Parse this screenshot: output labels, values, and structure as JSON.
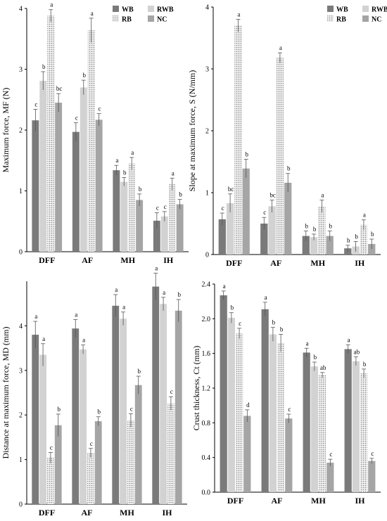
{
  "colors": {
    "WB": "#7a7a7a",
    "RWB": "#d2d2d2",
    "RB": "#c6c6c6",
    "NC": "#a5a5a5",
    "axis": "#000000",
    "error": "#555555"
  },
  "legend_names": [
    "WB",
    "RWB",
    "RB",
    "NC"
  ],
  "chart_data": [
    {
      "type": "bar",
      "categories": [
        "DFF",
        "AF",
        "MH",
        "IH"
      ],
      "ylabel": "Maximum force, MF (N)",
      "ylim": [
        0,
        4
      ],
      "yticks": [
        "0",
        "1",
        "2",
        "3",
        "4"
      ],
      "legend": "top-right",
      "series": [
        {
          "name": "WB",
          "values": [
            2.16,
            1.97,
            1.34,
            0.51
          ],
          "errors": [
            0.18,
            0.15,
            0.08,
            0.13
          ],
          "labels": [
            "c",
            "c",
            "a",
            "c"
          ]
        },
        {
          "name": "RWB",
          "values": [
            2.81,
            2.7,
            1.15,
            0.58
          ],
          "errors": [
            0.15,
            0.12,
            0.07,
            0.08
          ],
          "labels": [
            "b",
            "b",
            "b",
            "c"
          ]
        },
        {
          "name": "RB",
          "values": [
            3.88,
            3.64,
            1.45,
            1.11
          ],
          "errors": [
            0.1,
            0.2,
            0.1,
            0.1
          ],
          "labels": [
            "a",
            "a",
            "a",
            "a"
          ]
        },
        {
          "name": "NC",
          "values": [
            2.45,
            2.17,
            0.85,
            0.78
          ],
          "errors": [
            0.15,
            0.1,
            0.1,
            0.08
          ],
          "labels": [
            "bc",
            "c",
            "b",
            "b"
          ]
        }
      ]
    },
    {
      "type": "bar",
      "categories": [
        "DFF",
        "AF",
        "MH",
        "IH"
      ],
      "ylabel": "Slope at maximum force, S (N/mm)",
      "ylim": [
        0,
        4
      ],
      "yticks": [
        "0",
        "1",
        "2",
        "3",
        "4"
      ],
      "legend": "top-right",
      "series": [
        {
          "name": "WB",
          "values": [
            0.57,
            0.5,
            0.3,
            0.1
          ],
          "errors": [
            0.1,
            0.1,
            0.08,
            0.05
          ],
          "labels": [
            "c",
            "c",
            "b",
            "b"
          ]
        },
        {
          "name": "RWB",
          "values": [
            0.83,
            0.78,
            0.28,
            0.13
          ],
          "errors": [
            0.15,
            0.1,
            0.05,
            0.08
          ],
          "labels": [
            "bc",
            "bc",
            "b",
            "b"
          ]
        },
        {
          "name": "RB",
          "values": [
            3.7,
            3.18,
            0.78,
            0.48
          ],
          "errors": [
            0.1,
            0.08,
            0.1,
            0.08
          ],
          "labels": [
            "a",
            "a",
            "a",
            "a"
          ]
        },
        {
          "name": "NC",
          "values": [
            1.39,
            1.16,
            0.3,
            0.17
          ],
          "errors": [
            0.15,
            0.15,
            0.08,
            0.08
          ],
          "labels": [
            "b",
            "b",
            "b",
            "b"
          ]
        }
      ]
    },
    {
      "type": "bar",
      "categories": [
        "DFF",
        "AF",
        "MH",
        "IH"
      ],
      "ylabel": "Distance at maximum force, MD (mm)",
      "ylim": [
        0,
        5
      ],
      "yticks": [
        "0",
        "1",
        "2",
        "3",
        "4"
      ],
      "series": [
        {
          "name": "WB",
          "values": [
            3.8,
            3.94,
            4.45,
            4.88
          ],
          "errors": [
            0.3,
            0.2,
            0.25,
            0.3
          ],
          "labels": [
            "a",
            "a",
            "a",
            "a"
          ]
        },
        {
          "name": "RWB",
          "values": [
            3.35,
            3.47,
            4.16,
            4.49
          ],
          "errors": [
            0.25,
            0.1,
            0.15,
            0.15
          ],
          "labels": [
            "a",
            "a",
            "a",
            "a"
          ]
        },
        {
          "name": "RB",
          "values": [
            1.04,
            1.15,
            1.88,
            2.26
          ],
          "errors": [
            0.12,
            0.1,
            0.15,
            0.15
          ],
          "labels": [
            "c",
            "c",
            "c",
            "c"
          ]
        },
        {
          "name": "NC",
          "values": [
            1.77,
            1.86,
            2.67,
            4.34
          ],
          "errors": [
            0.25,
            0.1,
            0.2,
            0.25
          ],
          "labels": [
            "b",
            "b",
            "b",
            "b"
          ]
        }
      ]
    },
    {
      "type": "bar",
      "categories": [
        "DFF",
        "AF",
        "MH",
        "IH"
      ],
      "ylabel": "Crust thickness, Ct (mm)",
      "ylim": [
        0,
        2.4
      ],
      "yticks": [
        "0.0",
        "0.4",
        "0.8",
        "1.2",
        "1.6",
        "2.0",
        "2.4"
      ],
      "series": [
        {
          "name": "WB",
          "values": [
            2.27,
            2.11,
            1.61,
            1.65
          ],
          "errors": [
            0.05,
            0.08,
            0.05,
            0.05
          ],
          "labels": [
            "a",
            "a",
            "a",
            "a"
          ]
        },
        {
          "name": "RWB",
          "values": [
            2.01,
            1.82,
            1.45,
            1.51
          ],
          "errors": [
            0.06,
            0.08,
            0.05,
            0.05
          ],
          "labels": [
            "b",
            "b",
            "b",
            "ab"
          ]
        },
        {
          "name": "RB",
          "values": [
            1.83,
            1.72,
            1.35,
            1.37
          ],
          "errors": [
            0.06,
            0.1,
            0.03,
            0.05
          ],
          "labels": [
            "c",
            "b",
            "ab",
            "b"
          ]
        },
        {
          "name": "NC",
          "values": [
            0.88,
            0.85,
            0.34,
            0.36
          ],
          "errors": [
            0.07,
            0.05,
            0.04,
            0.03
          ],
          "labels": [
            "d",
            "c",
            "c",
            "c"
          ]
        }
      ]
    }
  ]
}
